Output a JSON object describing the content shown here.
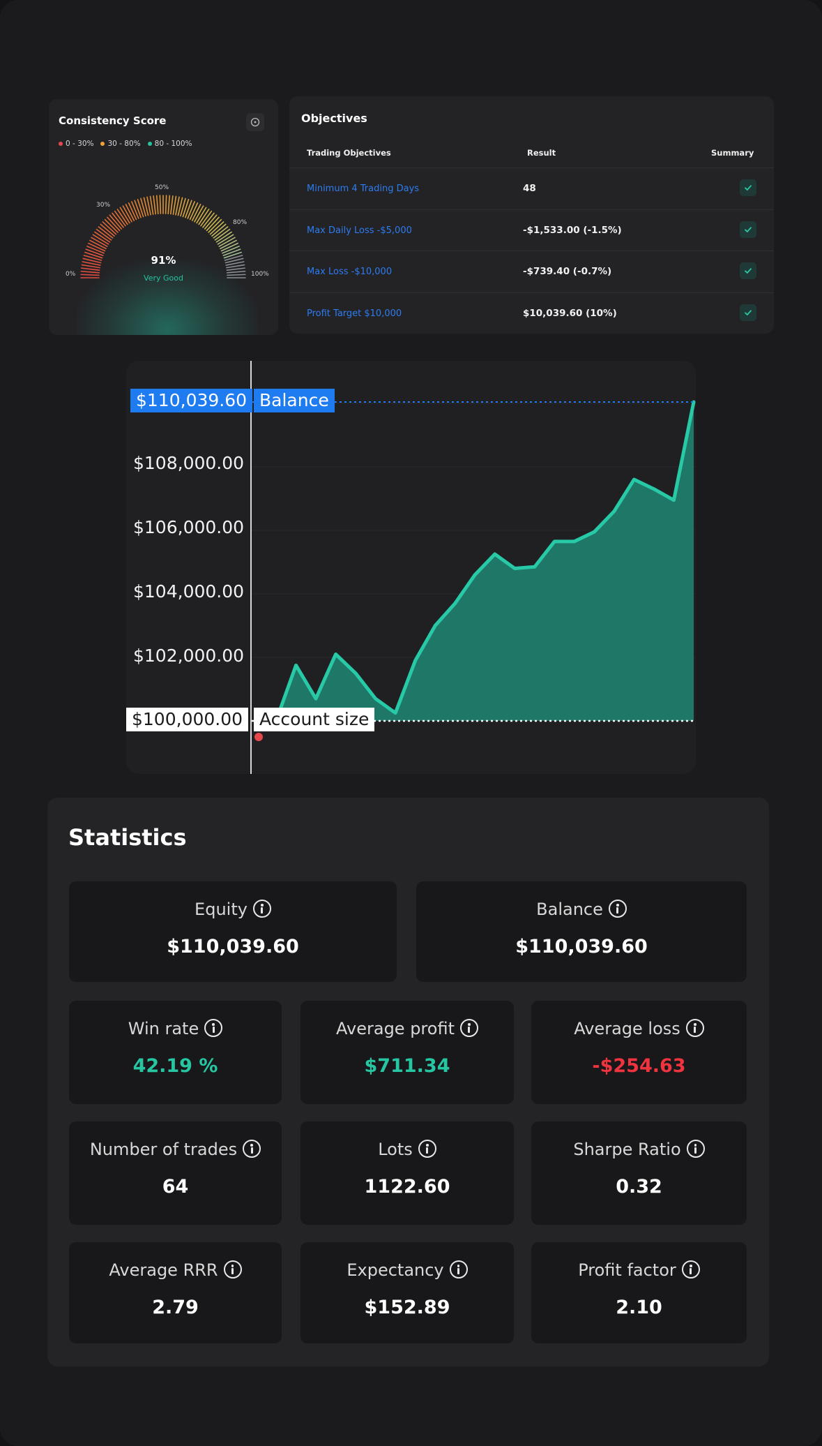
{
  "consistency": {
    "title": "Consistency Score",
    "legend": [
      {
        "label": "0 - 30%",
        "color": "#e5484d"
      },
      {
        "label": "30 - 80%",
        "color": "#f0a13a"
      },
      {
        "label": "80 - 100%",
        "color": "#27c29f"
      }
    ],
    "ticks": {
      "t0": "0%",
      "t30": "30%",
      "t50": "50%",
      "t80": "80%",
      "t100": "100%"
    },
    "value": "91%",
    "value_fraction": 0.91,
    "rating": "Very Good"
  },
  "objectives": {
    "title": "Objectives",
    "headers": {
      "objective": "Trading Objectives",
      "result": "Result",
      "summary": "Summary"
    },
    "rows": [
      {
        "objective": "Minimum 4 Trading Days",
        "result": "48",
        "passed": true
      },
      {
        "objective": "Max Daily Loss -$5,000",
        "result": "-$1,533.00 (-1.5%)",
        "passed": true
      },
      {
        "objective": "Max Loss -$10,000",
        "result": "-$739.40 (-0.7%)",
        "passed": true
      },
      {
        "objective": "Profit Target $10,000",
        "result": "$10,039.60 (10%)",
        "passed": true
      }
    ]
  },
  "chart_data": {
    "type": "area",
    "y_ticks": [
      "$108,000.00",
      "$106,000.00",
      "$104,000.00",
      "$102,000.00"
    ],
    "ylim": [
      99000,
      111250
    ],
    "balance_label": "$110,039.60",
    "balance_tag": "Balance",
    "account_label": "$100,000.00",
    "account_tag": "Account size",
    "balance_value": 110039.6,
    "account_value": 100000,
    "x": [
      1,
      2,
      3,
      4,
      5,
      6,
      7,
      8,
      9,
      10,
      11,
      12,
      13,
      14,
      15,
      16,
      17,
      18,
      19,
      20,
      21,
      22
    ],
    "values": [
      100000,
      101750,
      100700,
      102100,
      101500,
      100700,
      100250,
      101900,
      103000,
      103700,
      104600,
      105250,
      104800,
      104850,
      105650,
      105650,
      105950,
      106600,
      107600,
      107300,
      106950,
      110039.6
    ],
    "line_color": "#27c9a6",
    "fill_color": "#1f7c6b"
  },
  "statistics": {
    "title": "Statistics",
    "equity": {
      "label": "Equity",
      "value": "$110,039.60"
    },
    "balance": {
      "label": "Balance",
      "value": "$110,039.60"
    },
    "win_rate": {
      "label": "Win rate",
      "value": "42.19 %"
    },
    "avg_profit": {
      "label": "Average profit",
      "value": "$711.34"
    },
    "avg_loss": {
      "label": "Average loss",
      "value": "-$254.63"
    },
    "num_trades": {
      "label": "Number of trades",
      "value": "64"
    },
    "lots": {
      "label": "Lots",
      "value": "1122.60"
    },
    "sharpe": {
      "label": "Sharpe Ratio",
      "value": "0.32"
    },
    "avg_rrr": {
      "label": "Average RRR",
      "value": "2.79"
    },
    "expectancy": {
      "label": "Expectancy",
      "value": "$152.89"
    },
    "profit_factor": {
      "label": "Profit factor",
      "value": "2.10"
    }
  }
}
